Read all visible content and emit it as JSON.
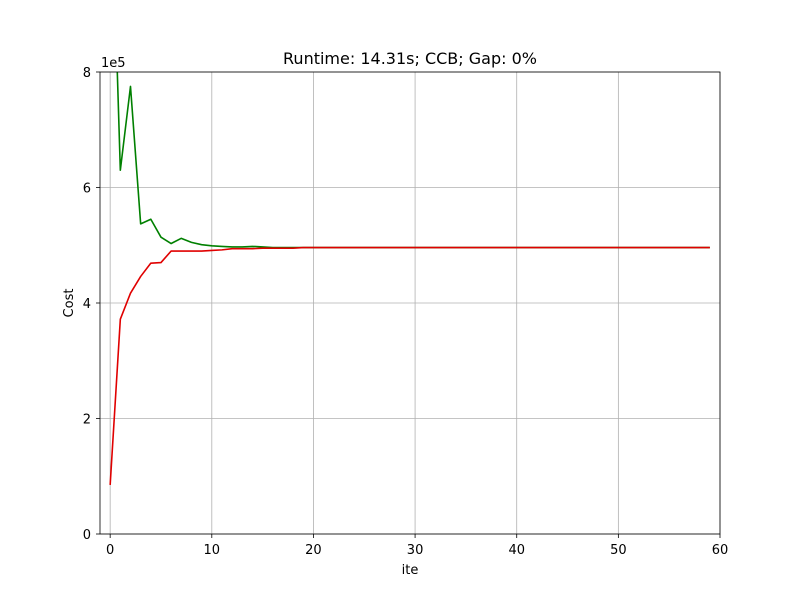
{
  "chart_data": {
    "type": "line",
    "title": "Runtime: 14.31s; CCB; Gap: 0%",
    "xlabel": "ite",
    "ylabel": "Cost",
    "y_offset_label": "1e5",
    "xlim": [
      -1,
      60
    ],
    "ylim": [
      0,
      8
    ],
    "x_ticks": [
      0,
      10,
      20,
      30,
      40,
      50,
      60
    ],
    "y_ticks": [
      0,
      2,
      4,
      6,
      8
    ],
    "grid": true,
    "series": [
      {
        "color": "#008000",
        "x": [
          0,
          1,
          2,
          3,
          4,
          5,
          6,
          7,
          8,
          9,
          10,
          11,
          12,
          13,
          14,
          15,
          16,
          17,
          18,
          19,
          20,
          21,
          22,
          23,
          24,
          25,
          26,
          27,
          28,
          29,
          30,
          31,
          32,
          33,
          34,
          35,
          36,
          37,
          38,
          39,
          40,
          41,
          42,
          43,
          44,
          45,
          46,
          47,
          48,
          49,
          50,
          51,
          52,
          53,
          54,
          55,
          56,
          57,
          58,
          59
        ],
        "values": [
          12.0,
          6.3,
          7.75,
          5.37,
          5.45,
          5.14,
          5.03,
          5.12,
          5.05,
          5.01,
          4.99,
          4.98,
          4.97,
          4.97,
          4.98,
          4.97,
          4.96,
          4.96,
          4.96,
          4.96,
          4.96,
          4.96,
          4.96,
          4.96,
          4.96,
          4.96,
          4.96,
          4.96,
          4.96,
          4.96,
          4.96,
          4.96,
          4.96,
          4.96,
          4.96,
          4.96,
          4.96,
          4.96,
          4.96,
          4.96,
          4.96,
          4.96,
          4.96,
          4.96,
          4.96,
          4.96,
          4.96,
          4.96,
          4.96,
          4.96,
          4.96,
          4.96,
          4.96,
          4.96,
          4.96,
          4.96,
          4.96,
          4.96,
          4.96,
          4.96
        ]
      },
      {
        "color": "#e00000",
        "x": [
          0,
          1,
          2,
          3,
          4,
          5,
          6,
          7,
          8,
          9,
          10,
          11,
          12,
          13,
          14,
          15,
          16,
          17,
          18,
          19,
          20,
          21,
          22,
          23,
          24,
          25,
          26,
          27,
          28,
          29,
          30,
          31,
          32,
          33,
          34,
          35,
          36,
          37,
          38,
          39,
          40,
          41,
          42,
          43,
          44,
          45,
          46,
          47,
          48,
          49,
          50,
          51,
          52,
          53,
          54,
          55,
          56,
          57,
          58,
          59
        ],
        "values": [
          0.85,
          3.72,
          4.17,
          4.46,
          4.69,
          4.7,
          4.9,
          4.9,
          4.9,
          4.9,
          4.91,
          4.92,
          4.94,
          4.94,
          4.94,
          4.95,
          4.95,
          4.95,
          4.95,
          4.96,
          4.96,
          4.96,
          4.96,
          4.96,
          4.96,
          4.96,
          4.96,
          4.96,
          4.96,
          4.96,
          4.96,
          4.96,
          4.96,
          4.96,
          4.96,
          4.96,
          4.96,
          4.96,
          4.96,
          4.96,
          4.96,
          4.96,
          4.96,
          4.96,
          4.96,
          4.96,
          4.96,
          4.96,
          4.96,
          4.96,
          4.96,
          4.96,
          4.96,
          4.96,
          4.96,
          4.96,
          4.96,
          4.96,
          4.96,
          4.96
        ]
      }
    ]
  }
}
